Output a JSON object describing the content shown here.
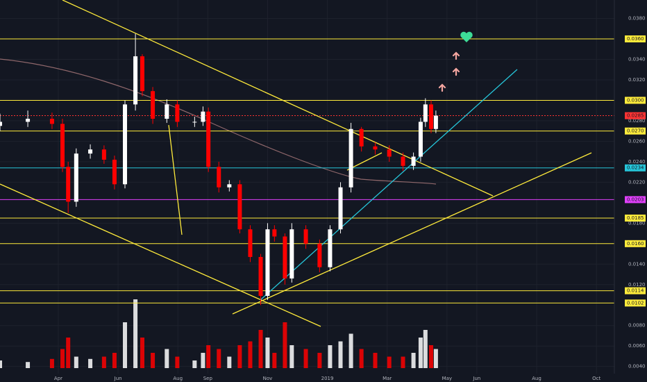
{
  "chart_data": {
    "type": "candlestick",
    "x": [
      1.05,
      1.98,
      2.79,
      3.14,
      3.33,
      3.6,
      4.07,
      4.53,
      4.88,
      5.23,
      5.58,
      5.81,
      6.16,
      6.63,
      6.98,
      7.56,
      7.84,
      8.02,
      8.37,
      8.72,
      9.07,
      9.42,
      9.77,
      10.0,
      10.23,
      10.58,
      10.81,
      11.28,
      11.74,
      12.09,
      12.44,
      12.79,
      13.14,
      13.6,
      14.07,
      14.53,
      14.88,
      15.12,
      15.28,
      15.47,
      15.63
    ],
    "open": [
      0.0275,
      0.0279,
      0.0282,
      0.0277,
      0.0235,
      0.0201,
      0.0248,
      0.0252,
      0.0242,
      0.0218,
      0.0296,
      0.0343,
      0.0309,
      0.0282,
      0.0296,
      0.0279,
      0.0279,
      0.0289,
      0.0235,
      0.0215,
      0.0218,
      0.0174,
      0.0147,
      0.0109,
      0.0174,
      0.0167,
      0.0126,
      0.0174,
      0.016,
      0.0137,
      0.0174,
      0.0215,
      0.0272,
      0.0255,
      0.0252,
      0.0245,
      0.0236,
      0.0245,
      0.0279,
      0.0296,
      0.0272
    ],
    "high": [
      0.0287,
      0.029,
      0.0288,
      0.0282,
      0.024,
      0.0253,
      0.0257,
      0.0256,
      0.0246,
      0.03,
      0.0365,
      0.0345,
      0.0313,
      0.0301,
      0.03,
      0.0284,
      0.0294,
      0.0293,
      0.024,
      0.0222,
      0.0222,
      0.0178,
      0.015,
      0.018,
      0.0178,
      0.017,
      0.018,
      0.0178,
      0.0164,
      0.0178,
      0.022,
      0.0278,
      0.0274,
      0.0259,
      0.0256,
      0.0249,
      0.0249,
      0.0283,
      0.0302,
      0.03,
      0.029
    ],
    "low": [
      0.027,
      0.0274,
      0.0272,
      0.023,
      0.019,
      0.0196,
      0.0243,
      0.0238,
      0.0213,
      0.0214,
      0.029,
      0.0304,
      0.0277,
      0.0278,
      0.0274,
      0.0274,
      0.0275,
      0.023,
      0.021,
      0.0211,
      0.017,
      0.0142,
      0.01,
      0.0105,
      0.0162,
      0.012,
      0.0122,
      0.0155,
      0.0132,
      0.0133,
      0.017,
      0.021,
      0.025,
      0.0247,
      0.024,
      0.0231,
      0.0232,
      0.024,
      0.0274,
      0.0268,
      0.0268
    ],
    "close": [
      0.0279,
      0.0282,
      0.0277,
      0.0235,
      0.0201,
      0.0248,
      0.0252,
      0.0242,
      0.0218,
      0.0296,
      0.0343,
      0.0309,
      0.0282,
      0.0296,
      0.0279,
      0.0279,
      0.0289,
      0.0235,
      0.0215,
      0.0218,
      0.0174,
      0.0147,
      0.0109,
      0.0174,
      0.0167,
      0.0126,
      0.0174,
      0.016,
      0.0137,
      0.0174,
      0.0215,
      0.0272,
      0.0255,
      0.0252,
      0.0245,
      0.0236,
      0.0245,
      0.0279,
      0.0296,
      0.0272,
      0.0285
    ],
    "volume": [
      10,
      8,
      12,
      25,
      40,
      15,
      12,
      15,
      20,
      60,
      90,
      40,
      20,
      25,
      15,
      10,
      20,
      30,
      25,
      15,
      30,
      35,
      50,
      40,
      20,
      60,
      30,
      25,
      20,
      30,
      35,
      45,
      25,
      20,
      15,
      15,
      20,
      40,
      50,
      30,
      25
    ],
    "up_color": "#ffffff",
    "down_color": "#ff0000",
    "xlim": [
      1.05,
      21.6
    ],
    "xticks": [
      {
        "value": 3,
        "label": "Apr"
      },
      {
        "value": 5,
        "label": "Jun"
      },
      {
        "value": 7,
        "label": "Aug"
      },
      {
        "value": 8,
        "label": "Sep"
      },
      {
        "value": 10,
        "label": "Nov"
      },
      {
        "value": 12,
        "label": "2019"
      },
      {
        "value": 14,
        "label": "Mar"
      },
      {
        "value": 16,
        "label": "May"
      },
      {
        "value": 17,
        "label": "Jun"
      },
      {
        "value": 19,
        "label": "Aug"
      },
      {
        "value": 21,
        "label": "Oct"
      }
    ],
    "ylim": [
      0.0033,
      0.0398
    ],
    "yticks": [
      {
        "value": 0.038,
        "label": "0.0380"
      },
      {
        "value": 0.034,
        "label": "0.0340"
      },
      {
        "value": 0.032,
        "label": "0.0320"
      },
      {
        "value": 0.028,
        "label": "0.0280"
      },
      {
        "value": 0.026,
        "label": "0.0260"
      },
      {
        "value": 0.024,
        "label": "0.0240"
      },
      {
        "value": 0.022,
        "label": "0.0220"
      },
      {
        "value": 0.018,
        "label": "0.0180"
      },
      {
        "value": 0.014,
        "label": "0.0140"
      },
      {
        "value": 0.012,
        "label": "0.0120"
      },
      {
        "value": 0.008,
        "label": "0.0080"
      },
      {
        "value": 0.006,
        "label": "0.0060"
      },
      {
        "value": 0.004,
        "label": "0.0040"
      }
    ],
    "levels": [
      {
        "value": 0.036,
        "label": "0.0360",
        "color": "#ffeb3b"
      },
      {
        "value": 0.03,
        "label": "0.0300",
        "color": "#ffeb3b"
      },
      {
        "value": 0.0285,
        "label": "0.0285",
        "color": "#ff3333"
      },
      {
        "value": 0.027,
        "label": "0.0270",
        "color": "#ffeb3b"
      },
      {
        "value": 0.0234,
        "label": "0.0234",
        "color": "#26c6da"
      },
      {
        "value": 0.0203,
        "label": "0.0203",
        "color": "#e040fb"
      },
      {
        "value": 0.0185,
        "label": "0.0185",
        "color": "#ffeb3b"
      },
      {
        "value": 0.016,
        "label": "0.0160",
        "color": "#ffeb3b"
      },
      {
        "value": 0.0114,
        "label": "0.0114",
        "color": "#ffeb3b"
      },
      {
        "value": 0.0102,
        "label": "0.0102",
        "color": "#ffeb3b"
      }
    ]
  }
}
